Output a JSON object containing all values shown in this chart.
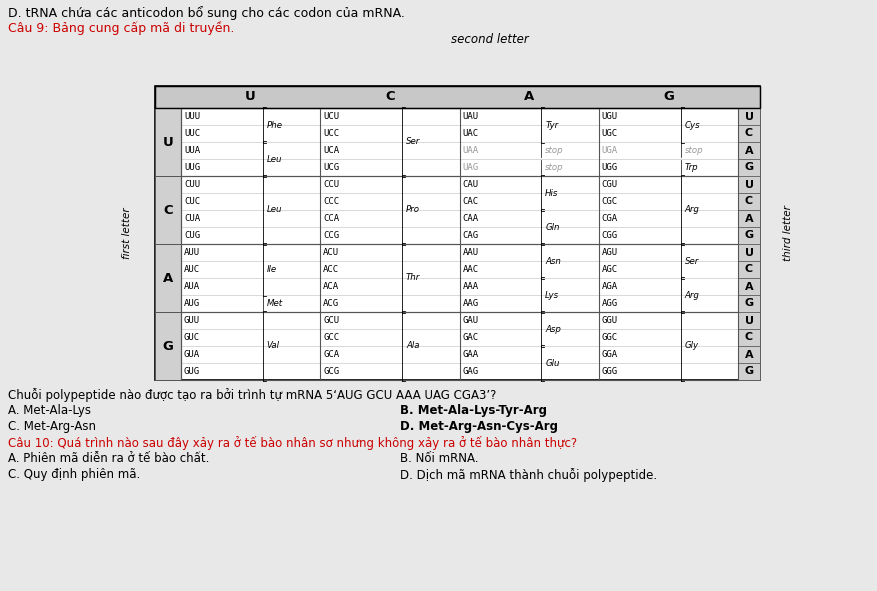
{
  "title_d": "D. tRNA chứa các anticodon bổ sung cho các codon của mRNA.",
  "title_cau9": "Câu 9: Bảng cung cấp mã di truyền.",
  "second_letter_label": "second letter",
  "first_letter_label": "first letter",
  "third_letter_label": "third letter",
  "col_headers": [
    "U",
    "C",
    "A",
    "G"
  ],
  "row_headers": [
    "U",
    "C",
    "A",
    "G"
  ],
  "third_letters": [
    "U",
    "C",
    "A",
    "G"
  ],
  "table_data": {
    "UU": {
      "codons": [
        "UUU",
        "UUC",
        "UUA",
        "UUG"
      ],
      "aminos": [
        "Phe",
        "Phe",
        "Leu",
        "Leu"
      ],
      "amino_labels": [
        {
          "aa": "Phe",
          "rows": [
            0,
            1
          ]
        },
        {
          "aa": "Leu",
          "rows": [
            2,
            3
          ]
        }
      ]
    },
    "UC": {
      "codons": [
        "UCU",
        "UCC",
        "UCA",
        "UCG"
      ],
      "aminos": [
        "Ser",
        "Ser",
        "Ser",
        "Ser"
      ],
      "amino_labels": [
        {
          "aa": "Ser",
          "rows": [
            0,
            1,
            2,
            3
          ]
        }
      ]
    },
    "UA": {
      "codons": [
        "UAU",
        "UAC",
        "UAA",
        "UAG"
      ],
      "aminos": [
        "Tyr",
        "Tyr",
        "stop",
        "stop"
      ],
      "amino_labels": [
        {
          "aa": "Tyr",
          "rows": [
            0,
            1
          ]
        },
        {
          "aa": "stop",
          "rows": [
            2
          ]
        },
        {
          "aa": "stop",
          "rows": [
            3
          ]
        }
      ]
    },
    "UG": {
      "codons": [
        "UGU",
        "UGC",
        "UGA",
        "UGG"
      ],
      "aminos": [
        "Cys",
        "Cys",
        "stop",
        "Trp"
      ],
      "amino_labels": [
        {
          "aa": "Cys",
          "rows": [
            0,
            1
          ]
        },
        {
          "aa": "stop",
          "rows": [
            2
          ]
        },
        {
          "aa": "Trp",
          "rows": [
            3
          ]
        }
      ]
    },
    "CU": {
      "codons": [
        "CUU",
        "CUC",
        "CUA",
        "CUG"
      ],
      "aminos": [
        "Leu",
        "Leu",
        "Leu",
        "Leu"
      ],
      "amino_labels": [
        {
          "aa": "Leu",
          "rows": [
            0,
            1,
            2,
            3
          ]
        }
      ]
    },
    "CC": {
      "codons": [
        "CCU",
        "CCC",
        "CCA",
        "CCG"
      ],
      "aminos": [
        "Pro",
        "Pro",
        "Pro",
        "Pro"
      ],
      "amino_labels": [
        {
          "aa": "Pro",
          "rows": [
            0,
            1,
            2,
            3
          ]
        }
      ]
    },
    "CA": {
      "codons": [
        "CAU",
        "CAC",
        "CAA",
        "CAG"
      ],
      "aminos": [
        "His",
        "His",
        "Gln",
        "Gln"
      ],
      "amino_labels": [
        {
          "aa": "His",
          "rows": [
            0,
            1
          ]
        },
        {
          "aa": "Gln",
          "rows": [
            2,
            3
          ]
        }
      ]
    },
    "CG": {
      "codons": [
        "CGU",
        "CGC",
        "CGA",
        "CGG"
      ],
      "aminos": [
        "Arg",
        "Arg",
        "Arg",
        "Arg"
      ],
      "amino_labels": [
        {
          "aa": "Arg",
          "rows": [
            0,
            1,
            2,
            3
          ]
        }
      ]
    },
    "AU": {
      "codons": [
        "AUU",
        "AUC",
        "AUA",
        "AUG"
      ],
      "aminos": [
        "Ile",
        "Ile",
        "Ile",
        "Met"
      ],
      "amino_labels": [
        {
          "aa": "Ile",
          "rows": [
            0,
            1,
            2
          ]
        },
        {
          "aa": "Met",
          "rows": [
            3
          ]
        }
      ]
    },
    "AC": {
      "codons": [
        "ACU",
        "ACC",
        "ACA",
        "ACG"
      ],
      "aminos": [
        "Thr",
        "Thr",
        "Thr",
        "Thr"
      ],
      "amino_labels": [
        {
          "aa": "Thr",
          "rows": [
            0,
            1,
            2,
            3
          ]
        }
      ]
    },
    "AA": {
      "codons": [
        "AAU",
        "AAC",
        "AAA",
        "AAG"
      ],
      "aminos": [
        "Asn",
        "Asn",
        "Lys",
        "Lys"
      ],
      "amino_labels": [
        {
          "aa": "Asn",
          "rows": [
            0,
            1
          ]
        },
        {
          "aa": "Lys",
          "rows": [
            2,
            3
          ]
        }
      ]
    },
    "AG": {
      "codons": [
        "AGU",
        "AGC",
        "AGA",
        "AGG"
      ],
      "aminos": [
        "Ser",
        "Ser",
        "Arg",
        "Arg"
      ],
      "amino_labels": [
        {
          "aa": "Ser",
          "rows": [
            0,
            1
          ]
        },
        {
          "aa": "Arg",
          "rows": [
            2,
            3
          ]
        }
      ]
    },
    "GU": {
      "codons": [
        "GUU",
        "GUC",
        "GUA",
        "GUG"
      ],
      "aminos": [
        "Val",
        "Val",
        "Val",
        "Val"
      ],
      "amino_labels": [
        {
          "aa": "Val",
          "rows": [
            0,
            1,
            2,
            3
          ]
        }
      ]
    },
    "GC": {
      "codons": [
        "GCU",
        "GCC",
        "GCA",
        "GCG"
      ],
      "aminos": [
        "Ala",
        "Ala",
        "Ala",
        "Ala"
      ],
      "amino_labels": [
        {
          "aa": "Ala",
          "rows": [
            0,
            1,
            2,
            3
          ]
        }
      ]
    },
    "GA": {
      "codons": [
        "GAU",
        "GAC",
        "GAA",
        "GAG"
      ],
      "aminos": [
        "Asp",
        "Asp",
        "Glu",
        "Glu"
      ],
      "amino_labels": [
        {
          "aa": "Asp",
          "rows": [
            0,
            1
          ]
        },
        {
          "aa": "Glu",
          "rows": [
            2,
            3
          ]
        }
      ]
    },
    "GG": {
      "codons": [
        "GGU",
        "GGC",
        "GGA",
        "GGG"
      ],
      "aminos": [
        "Gly",
        "Gly",
        "Gly",
        "Gly"
      ],
      "amino_labels": [
        {
          "aa": "Gly",
          "rows": [
            0,
            1,
            2,
            3
          ]
        }
      ]
    }
  },
  "question9_text": "Chuỗi polypeptide nào được tạo ra bởi trình tự mRNA 5‘AUG GCU AAA UAG CGA3’?",
  "q9_options": {
    "A": "Met-Ala-Lys",
    "B": "Met-Ala-Lys-Tyr-Arg",
    "C": "Met-Arg-Asn",
    "D": "Met-Arg-Asn-Cys-Arg"
  },
  "cau10_text": "Câu 10: Quá trình nào sau đây xảy ra ở tế bào nhân sơ nhưng không xảy ra ở tế bào nhân thực?",
  "q10_options": {
    "A": "Phiên mã diễn ra ở tế bào chất.",
    "B": "Nối mRNA.",
    "C": "Quy định phiên mã.",
    "D": "Dịch mã mRNA thành chuỗi polypeptide."
  },
  "red_color": "#cc0000",
  "gray_color": "#999999",
  "black": "#000000",
  "bg_color": "#e8e8e8"
}
